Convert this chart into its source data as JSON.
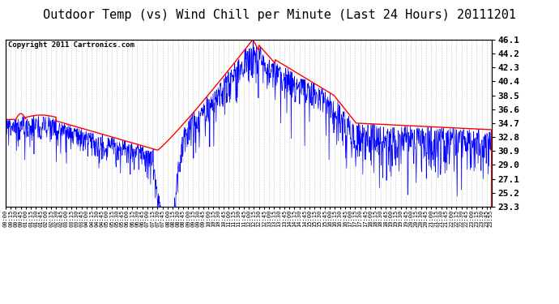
{
  "title": "Outdoor Temp (vs) Wind Chill per Minute (Last 24 Hours) 20111201",
  "copyright": "Copyright 2011 Cartronics.com",
  "yticks": [
    23.3,
    25.2,
    27.1,
    29.0,
    30.9,
    32.8,
    34.7,
    36.6,
    38.5,
    40.4,
    42.3,
    44.2,
    46.1
  ],
  "ymin": 23.3,
  "ymax": 46.1,
  "background_color": "#ffffff",
  "grid_color": "#c8c8c8",
  "line_color_temp": "red",
  "line_color_wind": "blue",
  "title_fontsize": 11,
  "copyright_fontsize": 6.5,
  "ytick_fontsize": 8,
  "xtick_fontsize": 5
}
